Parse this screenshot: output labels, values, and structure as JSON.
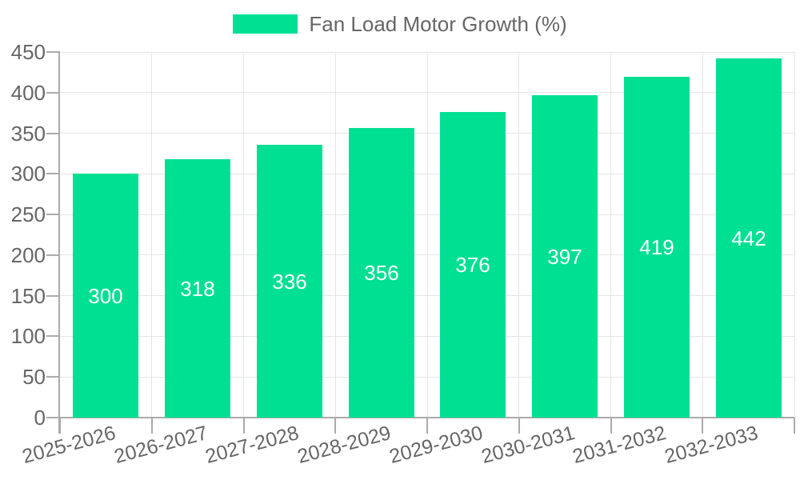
{
  "legend": {
    "label": "Fan Load Motor Growth (%)"
  },
  "chart_data": {
    "type": "bar",
    "title": "Fan Load Motor Growth (%)",
    "categories": [
      "2025-2026",
      "2026-2027",
      "2027-2028",
      "2028-2029",
      "2029-2030",
      "2030-2031",
      "2031-2032",
      "2032-2033"
    ],
    "values": [
      300,
      318,
      336,
      356,
      376,
      397,
      419,
      442
    ],
    "xlabel": "",
    "ylabel": "",
    "ylim": [
      0,
      450
    ],
    "ytick_step": 50,
    "grid": true,
    "legend_position": "top",
    "bar_labels_inside": true,
    "colors": {
      "bar": "#00E093",
      "bar_label": "#FFFFFF",
      "axis_text": "#666666",
      "grid_line": "#E5E5E5",
      "axis_line": "#ABABAB"
    }
  }
}
